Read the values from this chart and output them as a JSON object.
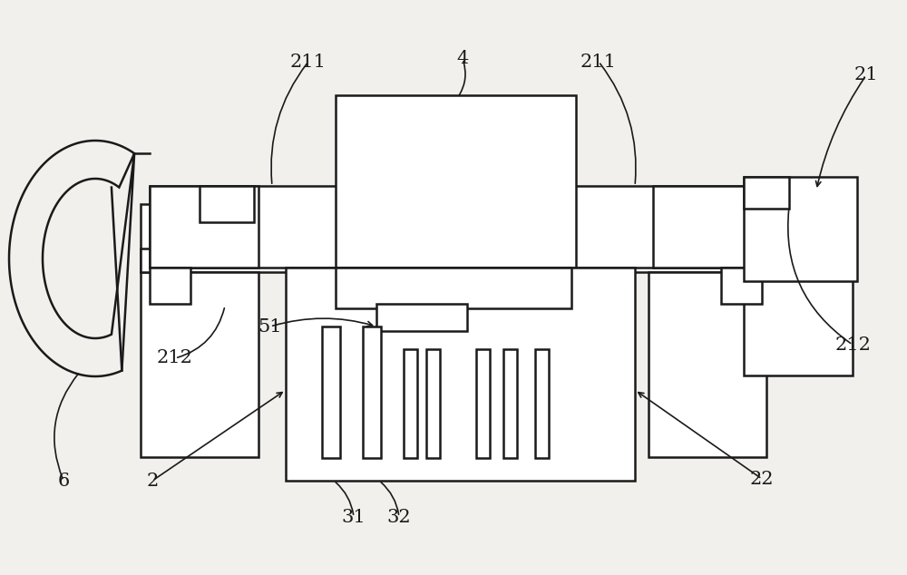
{
  "bg_color": "#f2f0ed",
  "line_color": "#1a1a1a",
  "line_width": 1.8,
  "fig_width": 10.0,
  "fig_height": 6.34,
  "label_fontsize": 15
}
